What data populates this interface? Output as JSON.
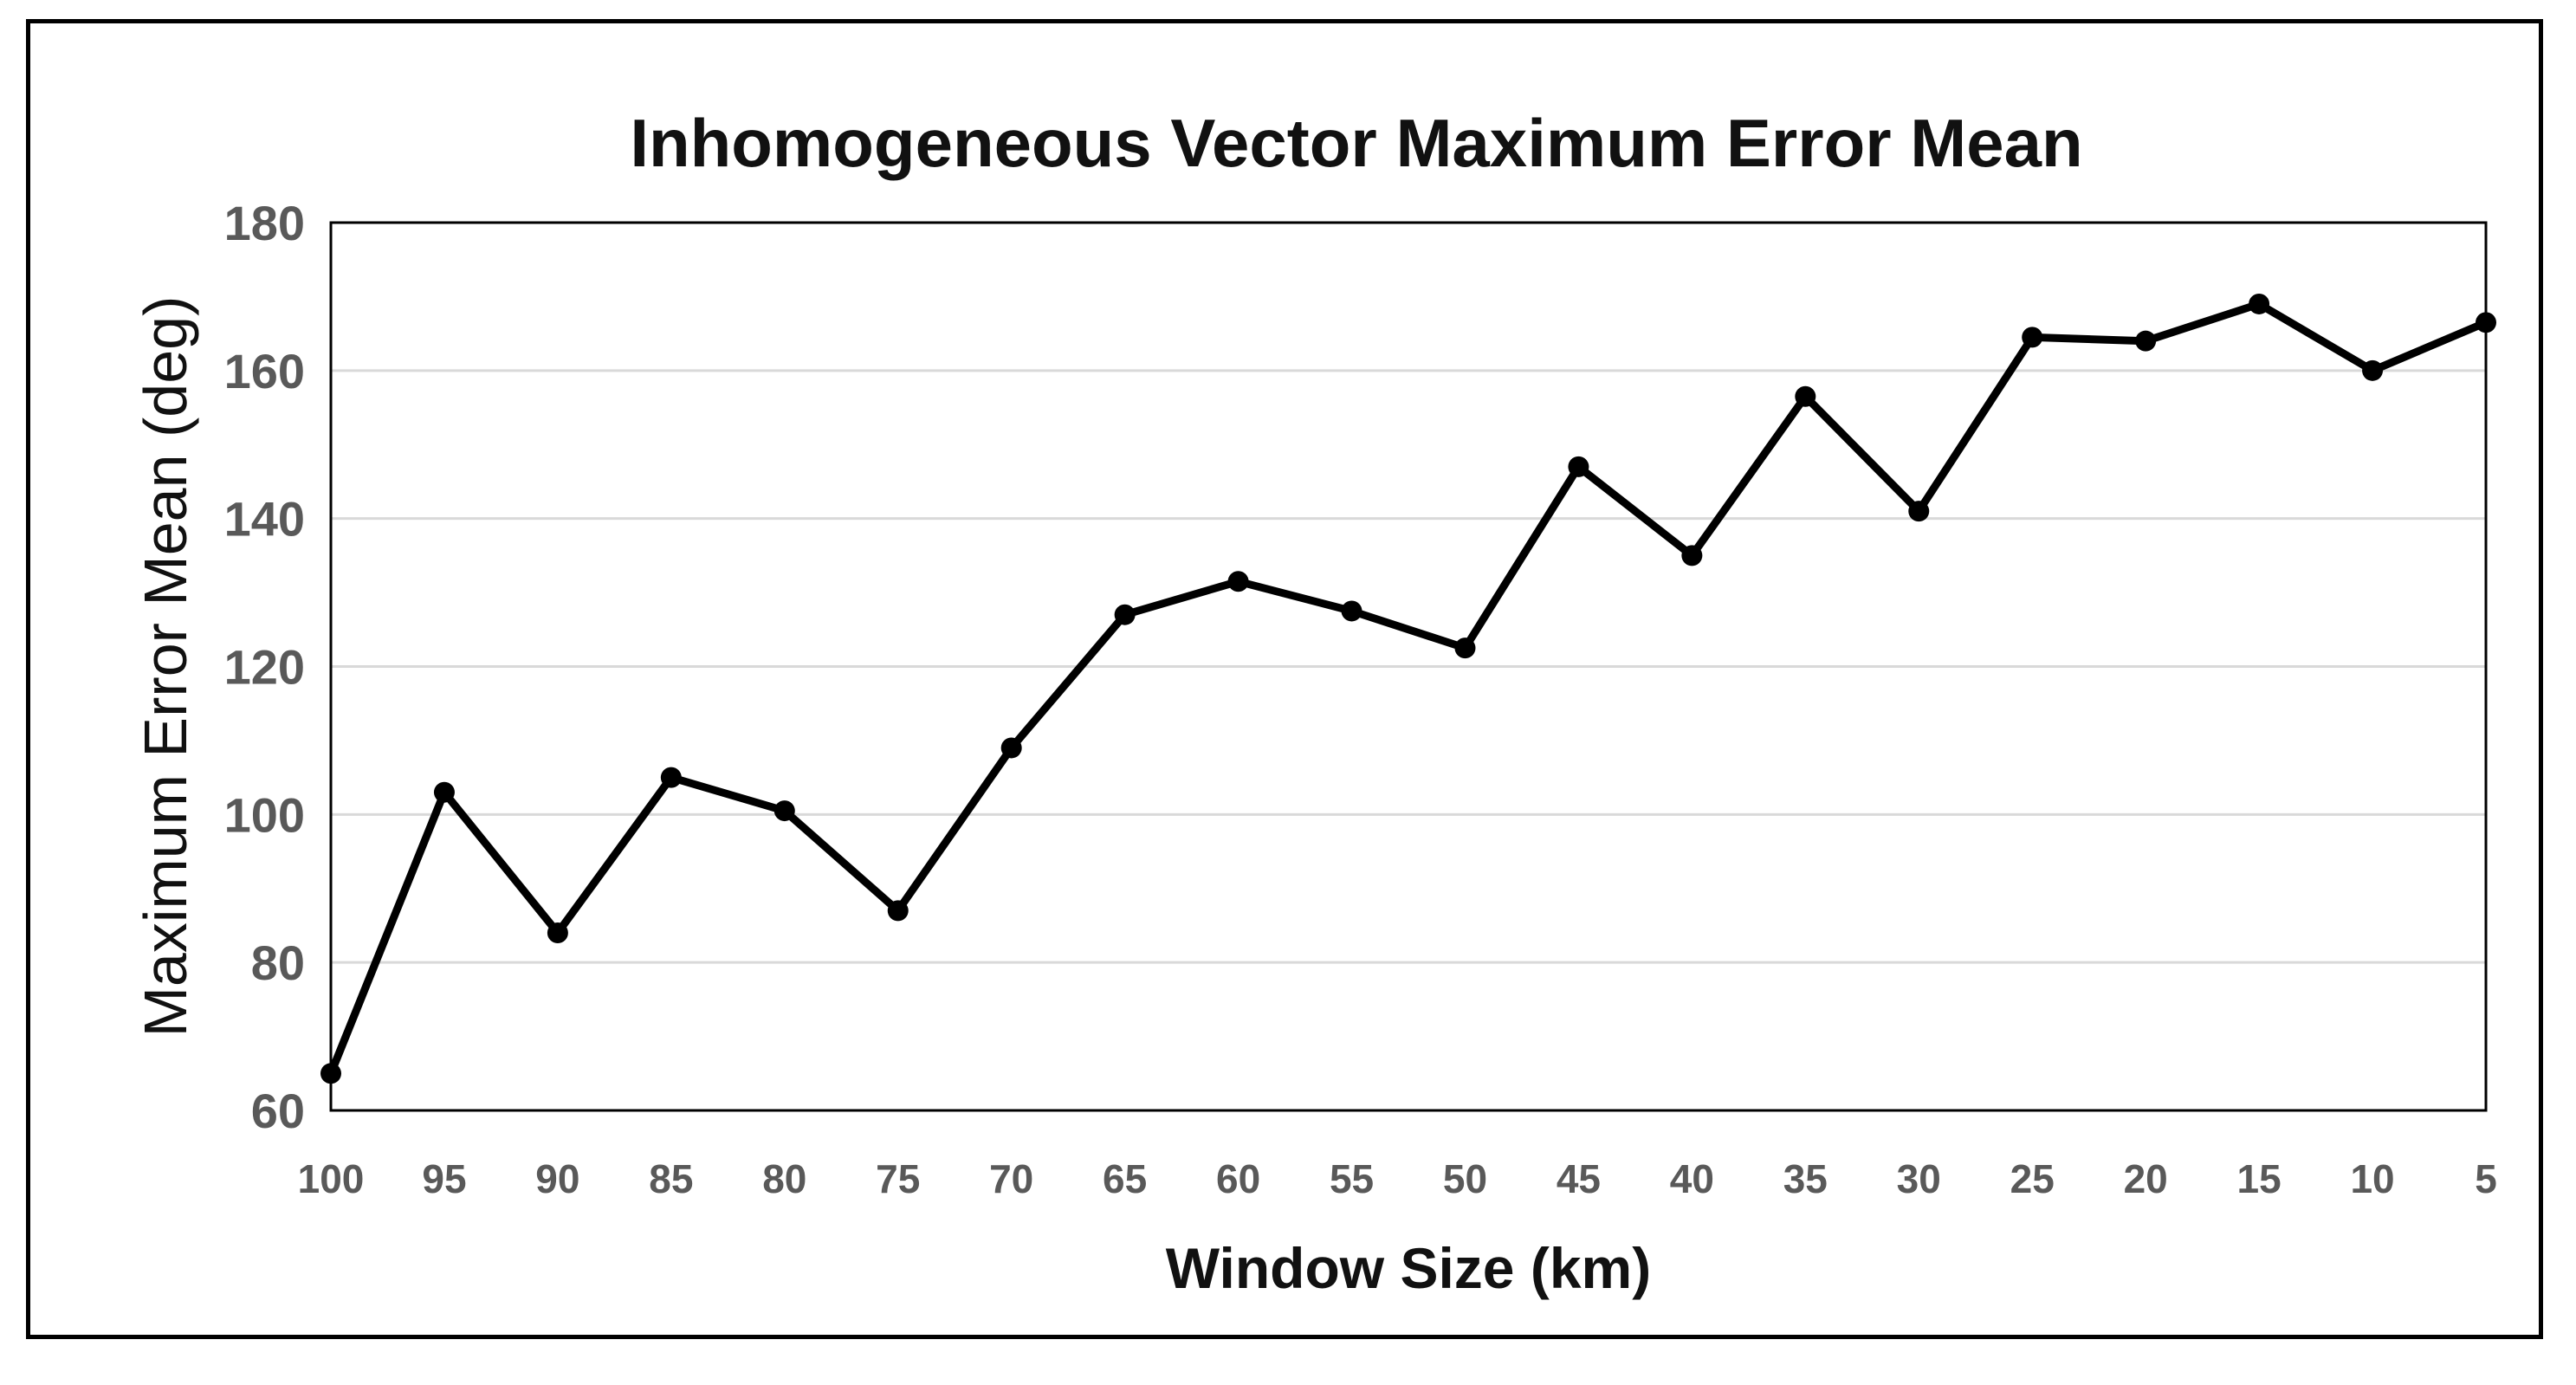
{
  "chart_data": {
    "type": "line",
    "title": "Inhomogeneous Vector Maximum Error Mean",
    "xlabel": "Window Size (km)",
    "ylabel": "Maximum Error Mean (deg)",
    "x": [
      "100",
      "95",
      "90",
      "85",
      "80",
      "75",
      "70",
      "65",
      "60",
      "55",
      "50",
      "45",
      "40",
      "35",
      "30",
      "25",
      "20",
      "15",
      "10",
      "5"
    ],
    "series": [
      {
        "values": [
          65,
          103,
          84,
          105,
          100.5,
          87,
          109,
          127,
          131.5,
          127.5,
          122.5,
          147,
          135,
          156.5,
          141,
          164.5,
          164,
          169,
          160,
          166.5
        ]
      }
    ],
    "ylim": [
      60,
      180
    ],
    "yticks": [
      "60",
      "80",
      "100",
      "120",
      "140",
      "160",
      "180"
    ],
    "grid": "horizontal",
    "colors": {
      "line": "#000000",
      "gridline": "#d9d9d9",
      "tick_label": "#595959"
    }
  }
}
